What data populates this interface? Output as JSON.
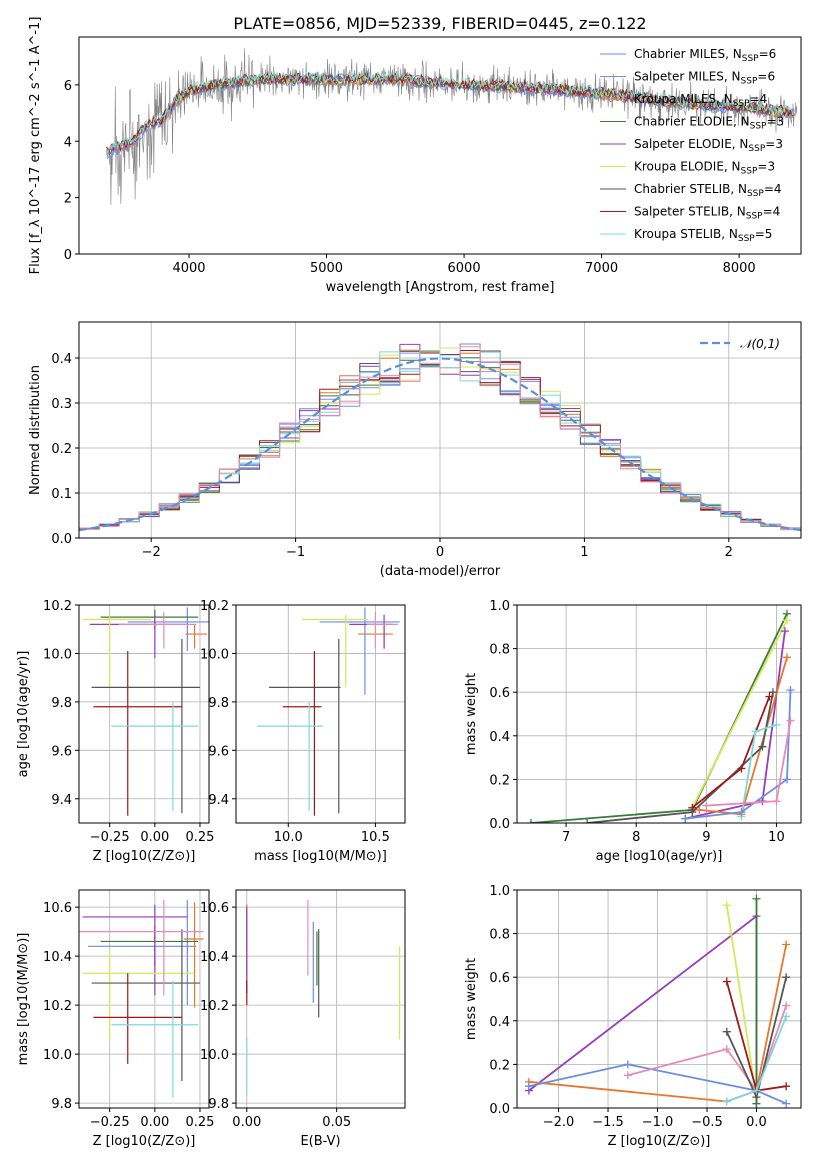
{
  "title": "PLATE=0856, MJD=52339, FIBERID=0445, z=0.122",
  "colors": {
    "Chabrier MILES": "#6a8ee0",
    "Salpeter MILES": "#7a8ef0",
    "Kroupa MILES": "#e6772e",
    "Chabrier ELODIE": "#3c7a3c",
    "Salpeter ELODIE": "#9a3bb8",
    "Kroupa ELODIE": "#d4e85a",
    "Chabrier STELIB": "#555555",
    "Salpeter STELIB": "#a01818",
    "Kroupa STELIB": "#7fd8d8",
    "data": "#808080",
    "normal": "#5b8fd6",
    "pink": "#e88ab8"
  },
  "chart_data": [
    {
      "type": "line",
      "panel": "spectrum",
      "xlabel": "wavelength [Angstrom, rest frame]",
      "ylabel": "Flux [f_λ 10^-17 erg cm^-2 s^-1 A^-1]",
      "xlim": [
        3200,
        8450
      ],
      "ylim": [
        0,
        7.7
      ],
      "xticks": [
        "4000",
        "5000",
        "6000",
        "7000",
        "8000"
      ],
      "yticks": [
        "0",
        "2",
        "4",
        "6"
      ],
      "legend_position": "upper right",
      "legend": [
        {
          "text": "Chabrier MILES, N",
          "sub": "SSP",
          "tail": "=6",
          "key": "Chabrier MILES"
        },
        {
          "text": "Salpeter MILES, N",
          "sub": "SSP",
          "tail": "=6",
          "key": "Salpeter MILES"
        },
        {
          "text": "Kroupa MILES, N",
          "sub": "SSP",
          "tail": "=4",
          "key": "Kroupa MILES"
        },
        {
          "text": "Chabrier ELODIE, N",
          "sub": "SSP",
          "tail": "=3",
          "key": "Chabrier ELODIE"
        },
        {
          "text": "Salpeter ELODIE, N",
          "sub": "SSP",
          "tail": "=3",
          "key": "Salpeter ELODIE"
        },
        {
          "text": "Kroupa ELODIE, N",
          "sub": "SSP",
          "tail": "=3",
          "key": "Kroupa ELODIE"
        },
        {
          "text": "Chabrier STELIB, N",
          "sub": "SSP",
          "tail": "=4",
          "key": "Chabrier STELIB"
        },
        {
          "text": "Salpeter STELIB, N",
          "sub": "SSP",
          "tail": "=4",
          "key": "Salpeter STELIB"
        },
        {
          "text": "Kroupa STELIB, N",
          "sub": "SSP",
          "tail": "=5",
          "key": "Kroupa STELIB"
        }
      ],
      "continuum": [
        [
          3400,
          3.6
        ],
        [
          3500,
          3.8
        ],
        [
          3600,
          4.0
        ],
        [
          3700,
          4.6
        ],
        [
          3800,
          4.7
        ],
        [
          3900,
          5.4
        ],
        [
          4000,
          5.8
        ],
        [
          4200,
          6.0
        ],
        [
          4500,
          6.2
        ],
        [
          5000,
          6.2
        ],
        [
          5500,
          6.2
        ],
        [
          6000,
          6.0
        ],
        [
          6500,
          5.9
        ],
        [
          7000,
          5.7
        ],
        [
          7500,
          5.4
        ],
        [
          8000,
          5.2
        ],
        [
          8400,
          5.0
        ]
      ]
    },
    {
      "type": "line",
      "panel": "residual histogram",
      "xlabel": "(data-model)/error",
      "ylabel": "Normed distribution",
      "xlim": [
        -2.5,
        2.5
      ],
      "ylim": [
        0,
        0.48
      ],
      "xticks": [
        "−2",
        "−1",
        "0",
        "1",
        "2"
      ],
      "yticks": [
        "0.0",
        "0.1",
        "0.2",
        "0.3",
        "0.4"
      ],
      "legend": "𝒩(0,1)",
      "legend_position": "upper right",
      "bins": 36
    },
    {
      "type": "scatter",
      "panel": "age vs Z",
      "xlabel": "Z [log10(Z/Z⊙)]",
      "ylabel": "age  [log10(age/yr)]",
      "xlim": [
        -0.42,
        0.3
      ],
      "ylim": [
        9.3,
        10.2
      ],
      "xticks": [
        "−0.25",
        "0.00",
        "0.25"
      ],
      "yticks": [
        "9.4",
        "9.6",
        "9.8",
        "10.0",
        "10.2"
      ],
      "points": [
        {
          "key": "Chabrier MILES",
          "x": 0.18,
          "y": 10.13,
          "xerr": [
            0.33,
            0.13
          ],
          "yerr": [
            0.12,
            0.06
          ]
        },
        {
          "key": "Kroupa MILES",
          "x": 0.22,
          "y": 10.08,
          "xerr": [
            0.05,
            0.07
          ],
          "yerr": [
            0.06,
            0.04
          ]
        },
        {
          "key": "Chabrier ELODIE",
          "x": 0.0,
          "y": 10.15,
          "xerr": [
            0.3,
            0.24
          ],
          "yerr": [
            0.05,
            0.03
          ]
        },
        {
          "key": "Salpeter ELODIE",
          "x": 0.0,
          "y": 10.12,
          "xerr": [
            0.36,
            0.18
          ],
          "yerr": [
            0.14,
            0.04
          ]
        },
        {
          "key": "Kroupa ELODIE",
          "x": -0.25,
          "y": 10.14,
          "xerr": [
            0.15,
            0.23
          ],
          "yerr": [
            0.28,
            0.02
          ]
        },
        {
          "key": "Chabrier STELIB",
          "x": 0.15,
          "y": 9.86,
          "xerr": [
            0.5,
            0.1
          ],
          "yerr": [
            0.52,
            0.2
          ]
        },
        {
          "key": "Salpeter STELIB",
          "x": -0.15,
          "y": 9.78,
          "xerr": [
            0.19,
            0.3
          ],
          "yerr": [
            0.45,
            0.23
          ]
        },
        {
          "key": "Kroupa STELIB",
          "x": 0.1,
          "y": 9.7,
          "xerr": [
            0.34,
            0.14
          ],
          "yerr": [
            0.35,
            0.1
          ]
        },
        {
          "key": "pink",
          "x": 0.05,
          "y": 10.12,
          "xerr": [
            0.25,
            0.18
          ],
          "yerr": [
            0.1,
            0.05
          ]
        }
      ]
    },
    {
      "type": "scatter",
      "panel": "age vs mass",
      "xlabel": "mass [log10(M/M⊙)]",
      "ylabel": "",
      "xlim": [
        9.7,
        10.67
      ],
      "ylim": [
        9.3,
        10.2
      ],
      "xticks": [
        "10.0",
        "10.5"
      ],
      "yticks": [
        "9.4",
        "9.6",
        "9.8",
        "10.0",
        "10.2"
      ],
      "points": [
        {
          "key": "Chabrier MILES",
          "x": 10.44,
          "y": 10.13,
          "xerr": [
            0.26,
            0.2
          ],
          "yerr": [
            0.3,
            0.06
          ]
        },
        {
          "key": "Kroupa MILES",
          "x": 10.55,
          "y": 10.08,
          "xerr": [
            0.15,
            0.05
          ],
          "yerr": [
            0.06,
            0.04
          ]
        },
        {
          "key": "Salpeter ELODIE",
          "x": 10.55,
          "y": 10.12,
          "xerr": [
            0.2,
            0.05
          ],
          "yerr": [
            0.1,
            0.04
          ]
        },
        {
          "key": "Kroupa ELODIE",
          "x": 10.33,
          "y": 10.14,
          "xerr": [
            0.25,
            0.13
          ],
          "yerr": [
            0.28,
            0.02
          ]
        },
        {
          "key": "Chabrier STELIB",
          "x": 10.29,
          "y": 9.86,
          "xerr": [
            0.4,
            0.01
          ],
          "yerr": [
            0.52,
            0.2
          ]
        },
        {
          "key": "Salpeter STELIB",
          "x": 10.15,
          "y": 9.78,
          "xerr": [
            0.18,
            0.04
          ],
          "yerr": [
            0.45,
            0.23
          ]
        },
        {
          "key": "Kroupa STELIB",
          "x": 10.12,
          "y": 9.7,
          "xerr": [
            0.3,
            0.08
          ],
          "yerr": [
            0.35,
            0.1
          ]
        },
        {
          "key": "pink",
          "x": 10.5,
          "y": 10.12,
          "xerr": [
            0.05,
            0.13
          ],
          "yerr": [
            0.1,
            0.05
          ]
        }
      ]
    },
    {
      "type": "line",
      "panel": "mass weight vs age",
      "xlabel": "age  [log10(age/yr)]",
      "ylabel": "mass weight",
      "xlim": [
        6.3,
        10.35
      ],
      "ylim": [
        0,
        1.0
      ],
      "xticks": [
        "7",
        "8",
        "9",
        "10"
      ],
      "yticks": [
        "0.0",
        "0.2",
        "0.4",
        "0.6",
        "0.8",
        "1.0"
      ],
      "series": [
        {
          "key": "Chabrier ELODIE",
          "points": [
            [
              6.5,
              0.0
            ],
            [
              8.8,
              0.06
            ],
            [
              10.15,
              0.96
            ]
          ]
        },
        {
          "key": "Kroupa ELODIE",
          "points": [
            [
              8.8,
              0.07
            ],
            [
              10.15,
              0.93
            ]
          ]
        },
        {
          "key": "Salpeter ELODIE",
          "points": [
            [
              8.7,
              0.02
            ],
            [
              9.8,
              0.1
            ],
            [
              10.12,
              0.88
            ]
          ]
        },
        {
          "key": "Kroupa MILES",
          "points": [
            [
              8.9,
              0.06
            ],
            [
              9.5,
              0.04
            ],
            [
              10.15,
              0.76
            ]
          ]
        },
        {
          "key": "Chabrier STELIB",
          "points": [
            [
              7.3,
              0.0
            ],
            [
              8.8,
              0.05
            ],
            [
              9.8,
              0.35
            ],
            [
              9.95,
              0.6
            ]
          ]
        },
        {
          "key": "Salpeter STELIB",
          "points": [
            [
              8.8,
              0.07
            ],
            [
              9.5,
              0.25
            ],
            [
              9.9,
              0.58
            ]
          ]
        },
        {
          "key": "Kroupa STELIB",
          "points": [
            [
              9.5,
              0.03
            ],
            [
              9.7,
              0.42
            ],
            [
              10.0,
              0.45
            ]
          ]
        },
        {
          "key": "Chabrier MILES",
          "points": [
            [
              8.7,
              0.02
            ],
            [
              9.5,
              0.05
            ],
            [
              10.15,
              0.2
            ],
            [
              10.2,
              0.61
            ]
          ]
        },
        {
          "key": "pink",
          "points": [
            [
              9.0,
              0.08
            ],
            [
              10.0,
              0.1
            ],
            [
              10.2,
              0.47
            ]
          ]
        }
      ]
    },
    {
      "type": "scatter",
      "panel": "mass vs Z",
      "xlabel": "Z [log10(Z/Z⊙)]",
      "ylabel": "mass [log10(M/M⊙)]",
      "xlim": [
        -0.42,
        0.3
      ],
      "ylim": [
        9.78,
        10.67
      ],
      "xticks": [
        "−0.25",
        "0.00",
        "0.25"
      ],
      "yticks": [
        "9.8",
        "10.0",
        "10.2",
        "10.4",
        "10.6"
      ],
      "points": [
        {
          "key": "Chabrier MILES",
          "x": 0.18,
          "y": 10.44,
          "xerr": [
            0.55,
            0.05
          ],
          "yerr": [
            0.24,
            0.19
          ]
        },
        {
          "key": "Kroupa MILES",
          "x": 0.22,
          "y": 10.47,
          "xerr": [
            0.06,
            0.05
          ],
          "yerr": [
            0.28,
            0.15
          ]
        },
        {
          "key": "Chabrier ELODIE",
          "x": 0.0,
          "y": 10.46,
          "xerr": [
            0.3,
            0.24
          ],
          "yerr": [
            0.1,
            0.06
          ]
        },
        {
          "key": "Salpeter ELODIE",
          "x": 0.0,
          "y": 10.56,
          "xerr": [
            0.4,
            0.18
          ],
          "yerr": [
            0.32,
            0.05
          ]
        },
        {
          "key": "Kroupa ELODIE",
          "x": -0.25,
          "y": 10.33,
          "xerr": [
            0.15,
            0.47
          ],
          "yerr": [
            0.27,
            0.1
          ]
        },
        {
          "key": "Chabrier STELIB",
          "x": 0.15,
          "y": 10.29,
          "xerr": [
            0.5,
            0.1
          ],
          "yerr": [
            0.4,
            0.22
          ]
        },
        {
          "key": "Salpeter STELIB",
          "x": -0.15,
          "y": 10.15,
          "xerr": [
            0.19,
            0.3
          ],
          "yerr": [
            0.19,
            0.18
          ]
        },
        {
          "key": "Kroupa STELIB",
          "x": 0.1,
          "y": 10.12,
          "xerr": [
            0.34,
            0.14
          ],
          "yerr": [
            0.3,
            0.18
          ]
        },
        {
          "key": "pink",
          "x": 0.05,
          "y": 10.5,
          "xerr": [
            0.55,
            0.22
          ],
          "yerr": [
            0.26,
            0.13
          ]
        }
      ]
    },
    {
      "type": "scatter",
      "panel": "mass vs E(B-V)",
      "xlabel": "E(B-V)",
      "ylabel": "",
      "xlim": [
        -0.006,
        0.088
      ],
      "ylim": [
        9.78,
        10.67
      ],
      "xticks": [
        "0.00",
        "0.05"
      ],
      "yticks": [
        "9.8",
        "10.0",
        "10.2",
        "10.4",
        "10.6"
      ],
      "points": [
        {
          "key": "Chabrier MILES",
          "x": 0.037,
          "y": 10.4,
          "yerr": [
            0.19,
            0.14
          ]
        },
        {
          "key": "Chabrier STELIB",
          "x": 0.04,
          "y": 10.33,
          "yerr": [
            0.18,
            0.18
          ]
        },
        {
          "key": "Chabrier ELODIE",
          "x": 0.039,
          "y": 10.4,
          "yerr": [
            0.12,
            0.1
          ]
        },
        {
          "key": "Kroupa ELODIE",
          "x": 0.085,
          "y": 10.25,
          "yerr": [
            0.19,
            0.19
          ]
        },
        {
          "key": "pink",
          "x": 0.034,
          "y": 10.47,
          "yerr": [
            0.15,
            0.16
          ]
        },
        {
          "key": "Kroupa MILES",
          "x": 0.0,
          "y": 10.45,
          "yerr": [
            0.2,
            0.16
          ]
        },
        {
          "key": "Salpeter ELODIE",
          "x": 0.0,
          "y": 10.45,
          "yerr": [
            0.2,
            0.15
          ]
        },
        {
          "key": "Salpeter STELIB",
          "x": 0.0,
          "y": 10.25,
          "yerr": [
            0.05,
            0.05
          ]
        },
        {
          "key": "Kroupa STELIB",
          "x": 0.0,
          "y": 9.95,
          "yerr": [
            0.12,
            0.12
          ]
        }
      ]
    },
    {
      "type": "line",
      "panel": "mass weight vs Z",
      "xlabel": "Z [log10(Z/Z⊙)]",
      "ylabel": "mass weight",
      "xlim": [
        -2.42,
        0.45
      ],
      "ylim": [
        0,
        1.0
      ],
      "xticks": [
        "−2.0",
        "−1.5",
        "−1.0",
        "−0.5",
        "0.0"
      ],
      "yticks": [
        "0.0",
        "0.2",
        "0.4",
        "0.6",
        "0.8",
        "1.0"
      ],
      "series": [
        {
          "key": "Salpeter ELODIE",
          "points": [
            [
              -2.3,
              0.08
            ],
            [
              0.0,
              0.88
            ],
            [
              0.0,
              0.02
            ]
          ]
        },
        {
          "key": "Kroupa ELODIE",
          "points": [
            [
              -0.3,
              0.93
            ],
            [
              0.0,
              0.05
            ]
          ]
        },
        {
          "key": "Chabrier ELODIE",
          "points": [
            [
              0.0,
              0.96
            ],
            [
              0.0,
              0.02
            ]
          ]
        },
        {
          "key": "Kroupa MILES",
          "points": [
            [
              -2.3,
              0.12
            ],
            [
              -0.3,
              0.03
            ],
            [
              0.0,
              0.08
            ],
            [
              0.3,
              0.75
            ]
          ]
        },
        {
          "key": "Chabrier MILES",
          "points": [
            [
              -2.3,
              0.1
            ],
            [
              -1.3,
              0.2
            ],
            [
              0.0,
              0.08
            ],
            [
              0.3,
              0.02
            ]
          ]
        },
        {
          "key": "pink",
          "points": [
            [
              -1.3,
              0.15
            ],
            [
              -0.3,
              0.27
            ],
            [
              0.0,
              0.08
            ],
            [
              0.3,
              0.47
            ]
          ]
        },
        {
          "key": "Chabrier STELIB",
          "points": [
            [
              -0.3,
              0.35
            ],
            [
              0.0,
              0.05
            ],
            [
              0.3,
              0.6
            ]
          ]
        },
        {
          "key": "Salpeter STELIB",
          "points": [
            [
              -0.3,
              0.58
            ],
            [
              0.0,
              0.08
            ],
            [
              0.3,
              0.1
            ]
          ]
        },
        {
          "key": "Kroupa STELIB",
          "points": [
            [
              -0.3,
              0.03
            ],
            [
              0.0,
              0.08
            ],
            [
              0.3,
              0.42
            ]
          ]
        }
      ]
    }
  ]
}
